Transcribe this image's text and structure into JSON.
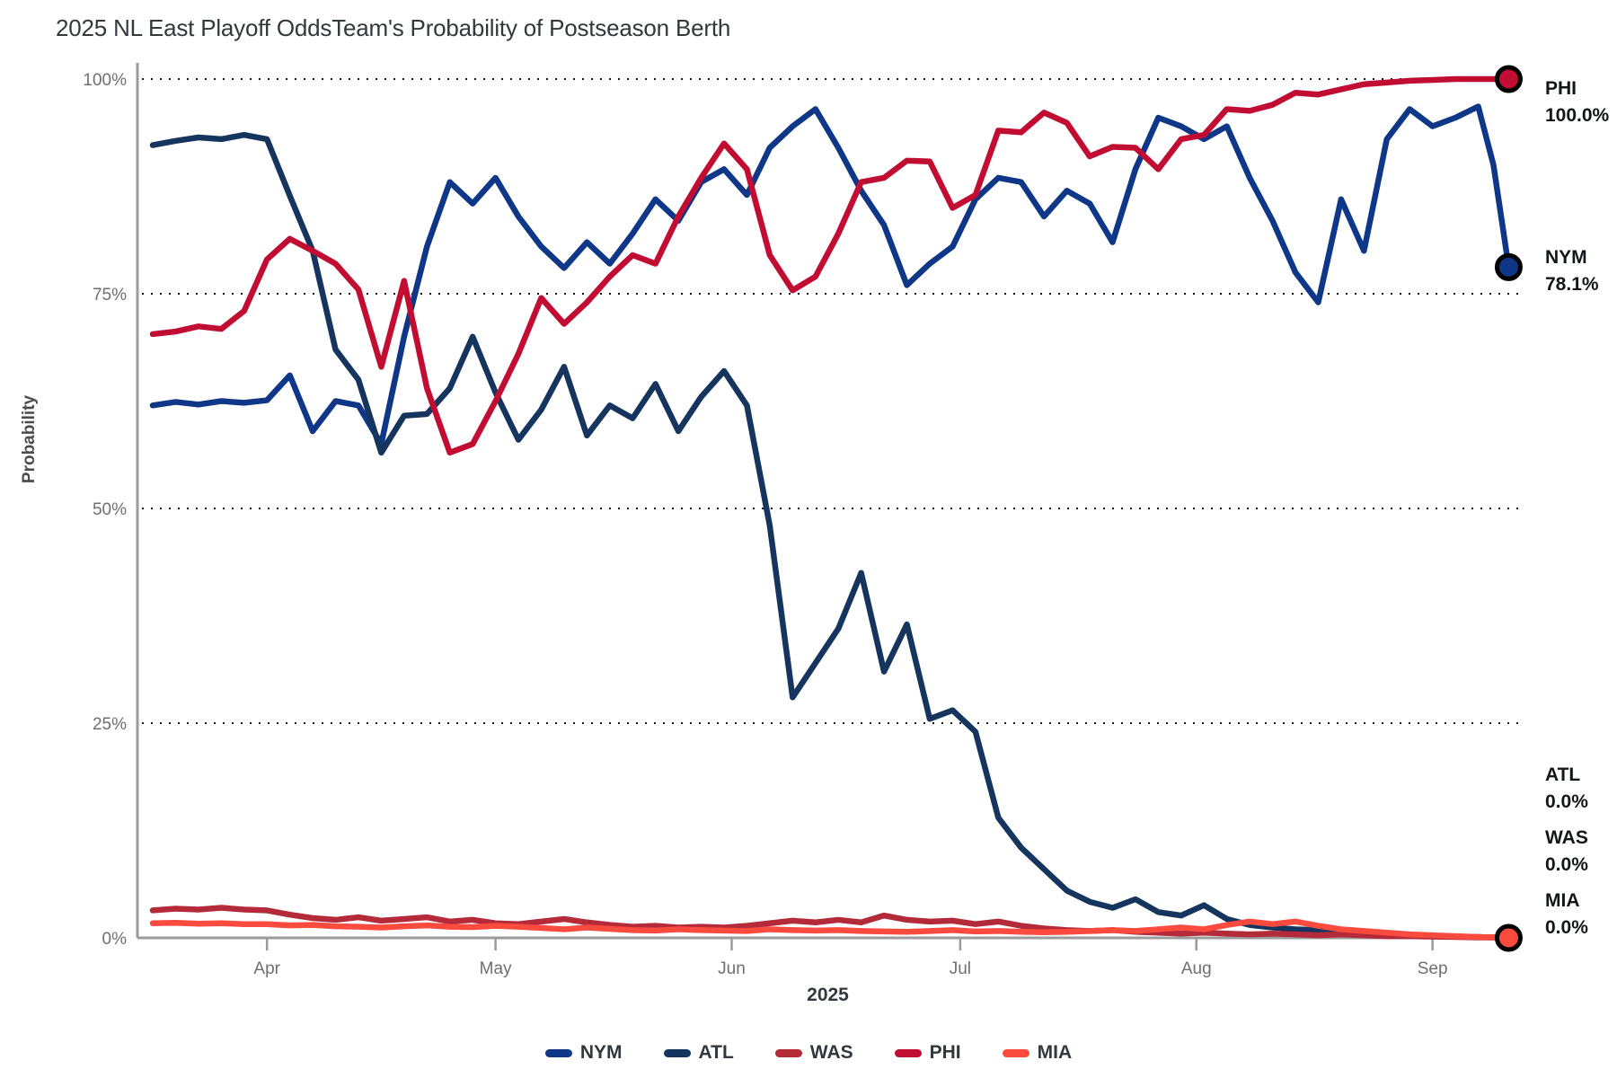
{
  "title": "2025 NL East Playoff OddsTeam's Probability of Postseason Berth",
  "chart_data": {
    "type": "line",
    "title": "2025 NL East Playoff OddsTeam's Probability of Postseason Berth",
    "x_axis": {
      "label": "2025",
      "start_date": "2025-03-17",
      "tick_labels": [
        "Apr",
        "May",
        "Jun",
        "Jul",
        "Aug",
        "Sep"
      ],
      "tick_days": [
        15,
        45,
        76,
        106,
        137,
        168
      ]
    },
    "y_axis": {
      "label": "Probability",
      "tick_labels": [
        "0%",
        "25%",
        "50%",
        "75%",
        "100%"
      ],
      "tick_values": [
        0,
        25,
        50,
        75,
        100
      ],
      "range": [
        0,
        100
      ],
      "gridlines": "dotted"
    },
    "legend_position": "bottom",
    "days": [
      0,
      3,
      6,
      9,
      12,
      15,
      18,
      21,
      24,
      27,
      30,
      33,
      36,
      39,
      42,
      45,
      48,
      51,
      54,
      57,
      60,
      63,
      66,
      69,
      72,
      75,
      78,
      81,
      84,
      87,
      90,
      93,
      96,
      99,
      102,
      105,
      108,
      111,
      114,
      117,
      120,
      123,
      126,
      129,
      132,
      135,
      138,
      141,
      144,
      147,
      150,
      153,
      156,
      159,
      162,
      165,
      168,
      171,
      174,
      176,
      178
    ],
    "series": [
      {
        "name": "NYM",
        "color": "#0f3787",
        "final_value_label": "78.1%",
        "end_marker": true,
        "values": [
          62.0,
          62.4,
          62.1,
          62.5,
          62.3,
          62.6,
          65.5,
          59.0,
          62.5,
          62.0,
          57.5,
          70.0,
          80.5,
          88.0,
          85.5,
          88.5,
          84.0,
          80.5,
          78.0,
          81.0,
          78.5,
          82.0,
          86.0,
          83.5,
          88.0,
          89.5,
          86.5,
          92.0,
          94.5,
          96.5,
          92.0,
          87.0,
          83.0,
          76.0,
          78.5,
          80.5,
          86.0,
          88.5,
          88.0,
          84.0,
          87.0,
          85.5,
          81.0,
          89.5,
          95.5,
          94.5,
          93.0,
          94.5,
          88.5,
          83.5,
          77.5,
          74.0,
          86.0,
          80.0,
          93.0,
          96.5,
          94.5,
          95.5,
          96.8,
          90.0,
          78.1
        ]
      },
      {
        "name": "ATL",
        "color": "#16355e",
        "final_value_label": "0.0%",
        "end_marker": false,
        "values": [
          92.3,
          92.8,
          93.2,
          93.0,
          93.5,
          93.0,
          86.4,
          80.0,
          68.5,
          65.0,
          56.5,
          60.8,
          61.0,
          64.0,
          70.0,
          63.5,
          58.0,
          61.5,
          66.5,
          58.5,
          62.0,
          60.5,
          64.5,
          59.0,
          63.0,
          66.0,
          62.0,
          48.0,
          28.0,
          32.0,
          36.0,
          42.5,
          31.0,
          36.5,
          25.5,
          26.5,
          24.0,
          14.0,
          10.5,
          8.0,
          5.5,
          4.2,
          3.5,
          4.5,
          3.0,
          2.6,
          3.8,
          2.2,
          1.5,
          1.2,
          1.0,
          0.9,
          0.7,
          0.5,
          0.4,
          0.3,
          0.2,
          0.15,
          0.1,
          0.05,
          0.0
        ]
      },
      {
        "name": "WAS",
        "color": "#b42a39",
        "final_value_label": "0.0%",
        "end_marker": false,
        "values": [
          3.2,
          3.4,
          3.3,
          3.5,
          3.3,
          3.2,
          2.7,
          2.3,
          2.1,
          2.4,
          2.0,
          2.2,
          2.4,
          1.9,
          2.1,
          1.7,
          1.6,
          1.9,
          2.2,
          1.8,
          1.5,
          1.3,
          1.4,
          1.2,
          1.3,
          1.2,
          1.4,
          1.7,
          2.0,
          1.8,
          2.1,
          1.8,
          2.6,
          2.1,
          1.9,
          2.0,
          1.6,
          1.9,
          1.4,
          1.1,
          0.9,
          0.8,
          0.9,
          0.7,
          0.6,
          0.5,
          0.6,
          0.5,
          0.4,
          0.5,
          0.4,
          0.3,
          0.4,
          0.3,
          0.2,
          0.2,
          0.15,
          0.1,
          0.05,
          0.05,
          0.0
        ]
      },
      {
        "name": "PHI",
        "color": "#c20d33",
        "final_value_label": "100.0%",
        "end_marker": true,
        "values": [
          70.3,
          70.6,
          71.2,
          70.9,
          73.0,
          79.0,
          81.4,
          80.0,
          78.5,
          75.5,
          66.5,
          76.5,
          64.0,
          56.5,
          57.5,
          62.5,
          68.0,
          74.5,
          71.5,
          74.0,
          77.0,
          79.5,
          78.5,
          84.0,
          88.5,
          92.5,
          89.5,
          79.5,
          75.4,
          77.0,
          82.0,
          88.0,
          88.5,
          90.5,
          90.4,
          85.0,
          86.5,
          94.0,
          93.8,
          96.1,
          94.9,
          91.0,
          92.1,
          92.0,
          89.5,
          93.0,
          93.5,
          96.5,
          96.3,
          97.0,
          98.4,
          98.2,
          98.8,
          99.4,
          99.6,
          99.8,
          99.9,
          100.0,
          100.0,
          100.0,
          100.0
        ]
      },
      {
        "name": "MIA",
        "color": "#fa4b3e",
        "final_value_label": "0.0%",
        "end_marker": true,
        "values": [
          1.7,
          1.75,
          1.65,
          1.7,
          1.6,
          1.6,
          1.45,
          1.5,
          1.35,
          1.3,
          1.2,
          1.35,
          1.45,
          1.3,
          1.25,
          1.4,
          1.3,
          1.15,
          1.0,
          1.2,
          1.05,
          0.9,
          0.85,
          1.0,
          0.9,
          0.85,
          0.8,
          1.0,
          0.9,
          0.85,
          0.9,
          0.8,
          0.75,
          0.7,
          0.8,
          0.9,
          0.75,
          0.8,
          0.7,
          0.65,
          0.7,
          0.8,
          0.9,
          0.8,
          1.0,
          1.2,
          1.0,
          1.5,
          1.9,
          1.6,
          1.9,
          1.4,
          1.0,
          0.8,
          0.6,
          0.4,
          0.3,
          0.2,
          0.1,
          0.05,
          0.0
        ]
      }
    ]
  },
  "end_labels": [
    {
      "team": "PHI",
      "value": "100.0%"
    },
    {
      "team": "NYM",
      "value": "78.1%"
    },
    {
      "team": "ATL",
      "value": "0.0%"
    },
    {
      "team": "WAS",
      "value": "0.0%"
    },
    {
      "team": "MIA",
      "value": "0.0%"
    }
  ],
  "legend": {
    "items": [
      {
        "label": "NYM",
        "color": "#0f3787"
      },
      {
        "label": "ATL",
        "color": "#16355e"
      },
      {
        "label": "WAS",
        "color": "#b42a39"
      },
      {
        "label": "PHI",
        "color": "#c20d33"
      },
      {
        "label": "MIA",
        "color": "#fa4b3e"
      }
    ]
  }
}
